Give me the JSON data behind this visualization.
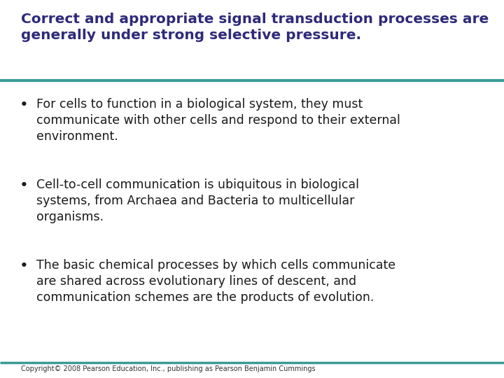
{
  "title_line1": "Correct and appropriate signal transduction processes are",
  "title_line2": "generally under strong selective pressure.",
  "title_color": "#2E2A7A",
  "title_fontsize": 14.5,
  "line_color": "#3A9B96",
  "bg_color": "#FFFFFF",
  "bullet_color": "#1a1a1a",
  "bullet_fontsize": 12.5,
  "copyright": "Copyright© 2008 Pearson Education, Inc., publishing as Pearson Benjamin Cummings",
  "copyright_fontsize": 7.0,
  "bullets": [
    "For cells to function in a biological system, they must\ncommunicate with other cells and respond to their external\nenvironment.",
    "Cell-to-cell communication is ubiquitous in biological\nsystems, from Archaea and Bacteria to multicellular\norganisms.",
    "The basic chemical processes by which cells communicate\nare shared across evolutionary lines of descent, and\ncommunication schemes are the products of evolution."
  ]
}
